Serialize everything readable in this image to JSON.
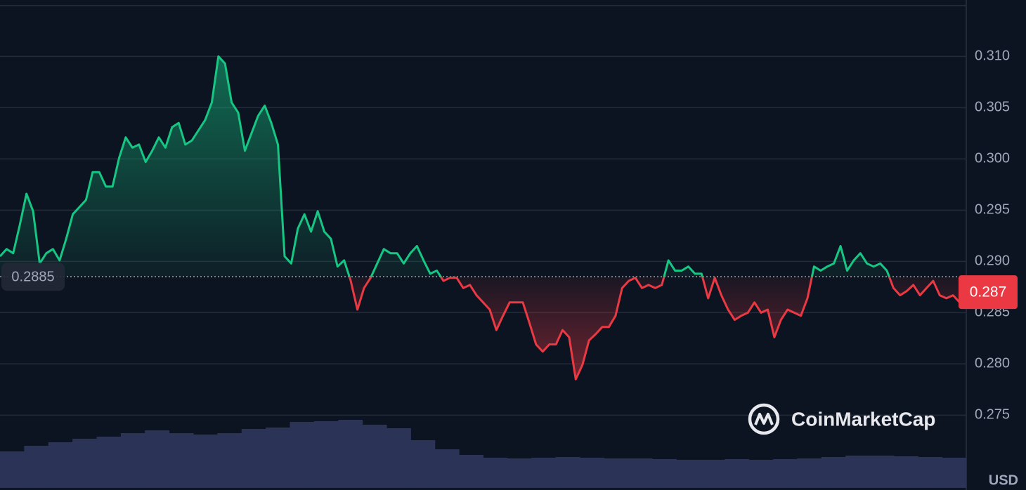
{
  "chart_data": {
    "type": "line",
    "series": [
      {
        "name": "Price",
        "up_color": "#16c784",
        "down_color": "#ea3943",
        "values": [
          0.2905,
          0.2912,
          0.2908,
          0.2936,
          0.2966,
          0.2949,
          0.2898,
          0.2908,
          0.2912,
          0.2901,
          0.2922,
          0.2946,
          0.2953,
          0.296,
          0.2987,
          0.2987,
          0.2973,
          0.2973,
          0.3001,
          0.3021,
          0.3011,
          0.3014,
          0.2997,
          0.3008,
          0.3021,
          0.3011,
          0.3031,
          0.3035,
          0.3014,
          0.3018,
          0.3028,
          0.3038,
          0.3055,
          0.31,
          0.3093,
          0.3055,
          0.3045,
          0.3008,
          0.3025,
          0.3042,
          0.3052,
          0.3035,
          0.3014,
          0.2905,
          0.2898,
          0.2932,
          0.2946,
          0.2929,
          0.2949,
          0.2929,
          0.2922,
          0.2895,
          0.2901,
          0.2881,
          0.2853,
          0.2874,
          0.2884,
          0.2898,
          0.2912,
          0.2908,
          0.2908,
          0.2898,
          0.2908,
          0.2915,
          0.2901,
          0.2888,
          0.2891,
          0.2881,
          0.2884,
          0.2884,
          0.2874,
          0.2877,
          0.2867,
          0.286,
          0.2853,
          0.2833,
          0.2847,
          0.286,
          0.286,
          0.286,
          0.284,
          0.2819,
          0.2812,
          0.2819,
          0.2819,
          0.2833,
          0.2826,
          0.2785,
          0.2799,
          0.2823,
          0.2829,
          0.2836,
          0.2836,
          0.2847,
          0.2874,
          0.2881,
          0.2884,
          0.2874,
          0.2877,
          0.2874,
          0.2877,
          0.2901,
          0.2891,
          0.2891,
          0.2895,
          0.2888,
          0.2888,
          0.2864,
          0.2884,
          0.2867,
          0.2853,
          0.2843,
          0.2847,
          0.285,
          0.286,
          0.285,
          0.2853,
          0.2826,
          0.2843,
          0.2853,
          0.285,
          0.2847,
          0.2864,
          0.2895,
          0.2891,
          0.2895,
          0.2898,
          0.2915,
          0.2891,
          0.2901,
          0.2908,
          0.2898,
          0.2895,
          0.2898,
          0.2891,
          0.2874,
          0.2867,
          0.2871,
          0.2877,
          0.2867,
          0.2874,
          0.2881,
          0.2867,
          0.2864,
          0.2867,
          0.286,
          0.286
        ]
      }
    ],
    "volume": {
      "color": "#2b3457",
      "vlim": [
        0,
        100
      ],
      "values": [
        52,
        60,
        65,
        70,
        73,
        78,
        82,
        78,
        76,
        78,
        84,
        86,
        94,
        95,
        97,
        90,
        85,
        68,
        55,
        47,
        43,
        42,
        43,
        44,
        43,
        42,
        42,
        41,
        40,
        40,
        41,
        40,
        41,
        42,
        44,
        46,
        46,
        45,
        44,
        43
      ]
    },
    "ylim": [
      0.2677,
      0.3155
    ],
    "yticks": [
      {
        "value": 0.31,
        "label": "0.310"
      },
      0.305,
      {
        "value": 0.3,
        "label": "0.300"
      },
      0.295,
      {
        "value": 0.29,
        "label": "0.290"
      },
      0.285,
      {
        "value": 0.28,
        "label": "0.280"
      },
      0.275
    ],
    "grid": true,
    "baseline": 0.2885,
    "current_price": {
      "value": 0.287,
      "label": "0.287"
    },
    "currency": "USD",
    "watermark": "CoinMarketCap"
  }
}
